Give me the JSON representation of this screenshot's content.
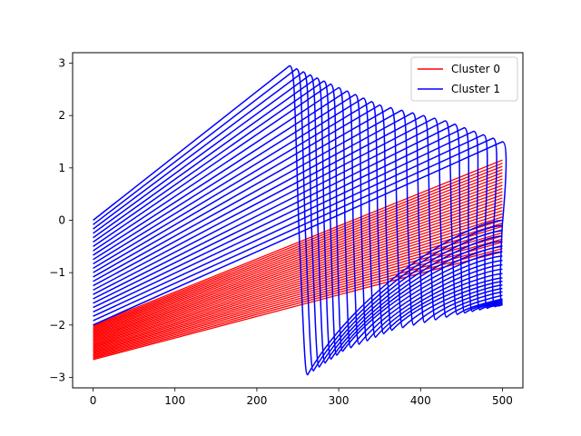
{
  "chart_data": {
    "type": "line",
    "title": "",
    "xlabel": "",
    "ylabel": "",
    "xlim": [
      -25,
      525
    ],
    "ylim": [
      -3.2,
      3.2
    ],
    "x_ticks": [
      0,
      100,
      200,
      300,
      400,
      500
    ],
    "y_ticks": [
      -3,
      -2,
      -1,
      0,
      1,
      2,
      3
    ],
    "grid": false,
    "legend_position": "top-right",
    "series": [
      {
        "name": "Cluster 0",
        "color": "#ff0000",
        "line_count": 30,
        "x": [
          0,
          500
        ],
        "description_lines": "parallel straight lines",
        "y_start_range": [
          -2.66,
          -2.0
        ],
        "y_end_range": [
          -0.6,
          1.15
        ]
      },
      {
        "name": "Cluster 1",
        "color": "#0000ff",
        "line_count": 25,
        "sample_lines": [
          {
            "y0": 0.0,
            "peak_x": 240,
            "peak_y": 2.95,
            "trough_x": 262,
            "trough_y": -2.95,
            "end_y": 0.0
          },
          {
            "y0": -0.5,
            "peak_x": 290,
            "peak_y": 2.6,
            "trough_x": 305,
            "trough_y": -2.5,
            "end_y": -0.6
          },
          {
            "y0": -1.0,
            "peak_x": 350,
            "peak_y": 2.2,
            "trough_x": 365,
            "trough_y": -2.1,
            "end_y": -1.1
          },
          {
            "y0": -1.5,
            "peak_x": 430,
            "peak_y": 1.9,
            "trough_x": 445,
            "trough_y": -1.8,
            "end_y": -1.5
          },
          {
            "y0": -2.0,
            "peak_x": 500,
            "peak_y": 1.5,
            "trough_x": 500,
            "trough_y": -1.62,
            "end_y": -1.62
          }
        ]
      }
    ]
  }
}
